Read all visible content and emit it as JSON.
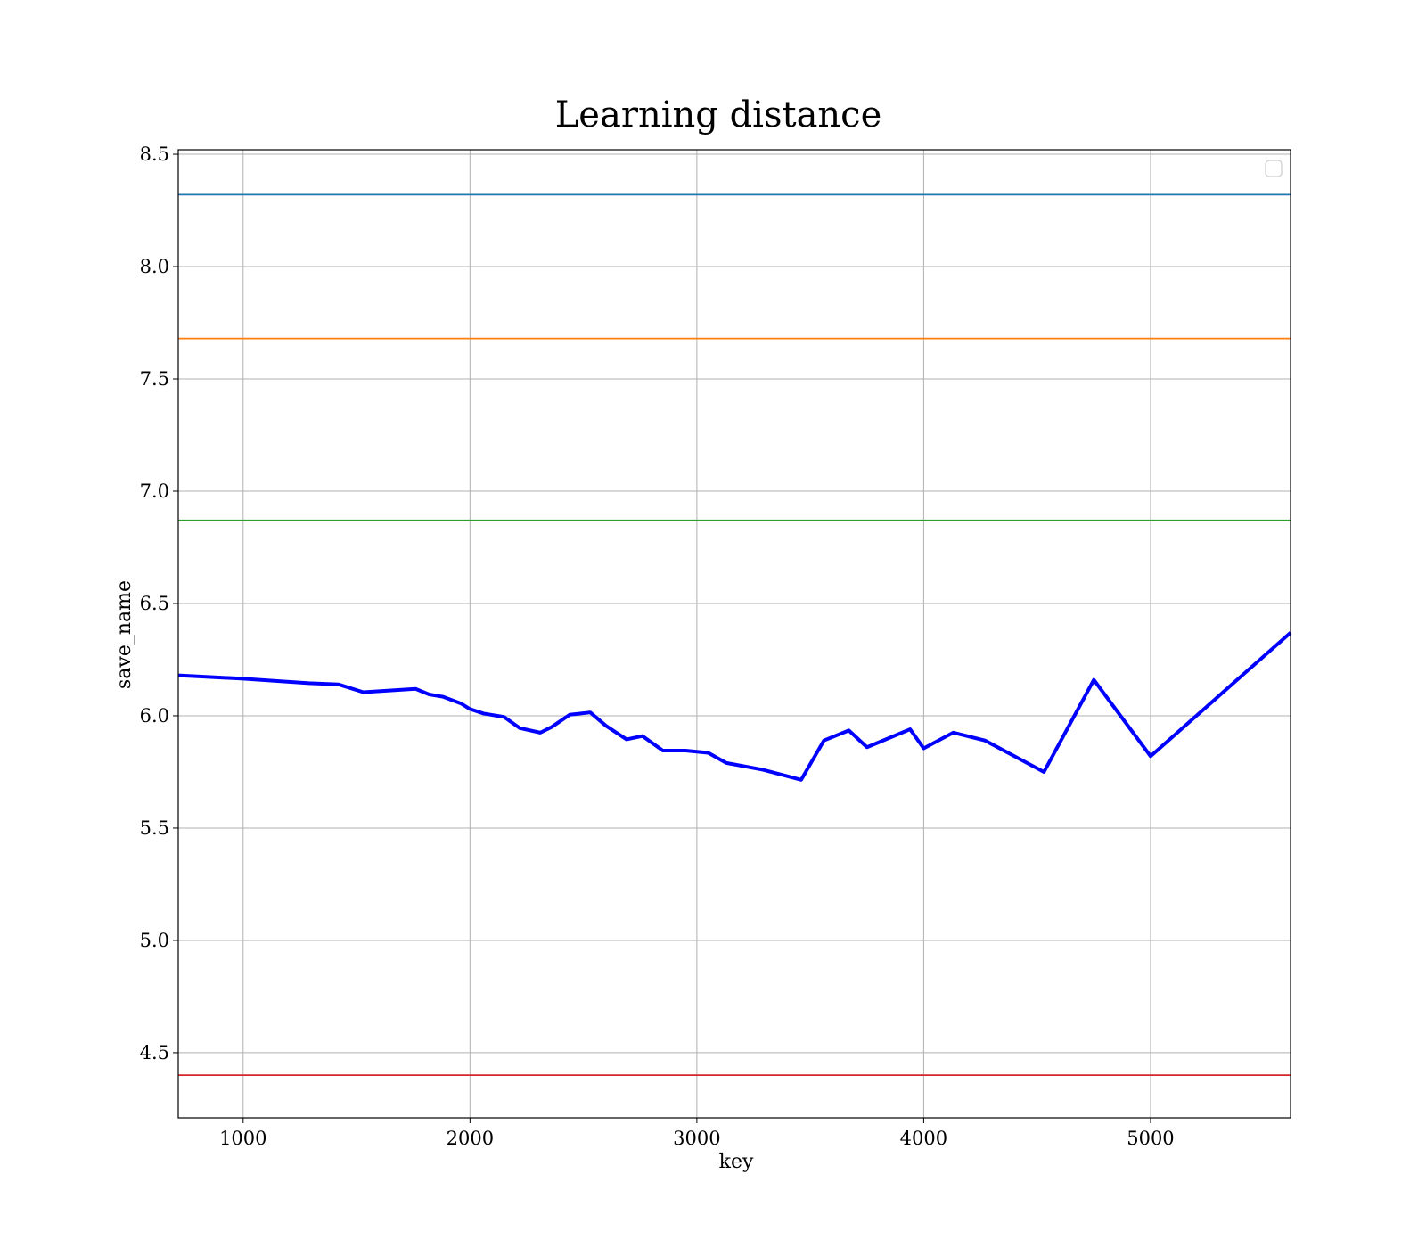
{
  "chart_data": {
    "type": "line",
    "title": "Learning distance",
    "xlabel": "key",
    "ylabel": "save_name",
    "xlim": [
      714,
      5617
    ],
    "ylim": [
      4.21,
      8.52
    ],
    "xticks": [
      1000,
      2000,
      3000,
      4000,
      5000
    ],
    "yticks": [
      4.5,
      5.0,
      5.5,
      6.0,
      6.5,
      7.0,
      7.5,
      8.0,
      8.5
    ],
    "xtick_labels": [
      "1000",
      "2000",
      "3000",
      "4000",
      "5000"
    ],
    "ytick_labels": [
      "4.5",
      "5.0",
      "5.5",
      "6.0",
      "6.5",
      "7.0",
      "7.5",
      "8.0",
      "8.5"
    ],
    "grid": true,
    "legend": {
      "placement": "top-right",
      "entries": []
    },
    "hlines": [
      {
        "y": 8.32,
        "color": "#1f77b4"
      },
      {
        "y": 7.68,
        "color": "#ff7f0e"
      },
      {
        "y": 6.87,
        "color": "#2ca02c"
      },
      {
        "y": 4.4,
        "color": "#d62728"
      }
    ],
    "series": [
      {
        "color": "#0000ff",
        "x": [
          714,
          1000,
          1290,
          1420,
          1530,
          1760,
          1820,
          1880,
          1960,
          2000,
          2060,
          2150,
          2220,
          2310,
          2360,
          2440,
          2530,
          2600,
          2690,
          2760,
          2850,
          2950,
          3050,
          3130,
          3290,
          3460,
          3560,
          3670,
          3750,
          3940,
          4000,
          4130,
          4270,
          4530,
          4750,
          5000,
          5617
        ],
        "y": [
          6.18,
          6.165,
          6.145,
          6.14,
          6.105,
          6.12,
          6.095,
          6.085,
          6.055,
          6.03,
          6.01,
          5.995,
          5.945,
          5.925,
          5.95,
          6.005,
          6.015,
          5.955,
          5.895,
          5.91,
          5.845,
          5.845,
          5.835,
          5.79,
          5.76,
          5.715,
          5.89,
          5.935,
          5.86,
          5.94,
          5.855,
          5.925,
          5.89,
          5.75,
          6.16,
          5.82,
          6.37
        ]
      }
    ]
  }
}
